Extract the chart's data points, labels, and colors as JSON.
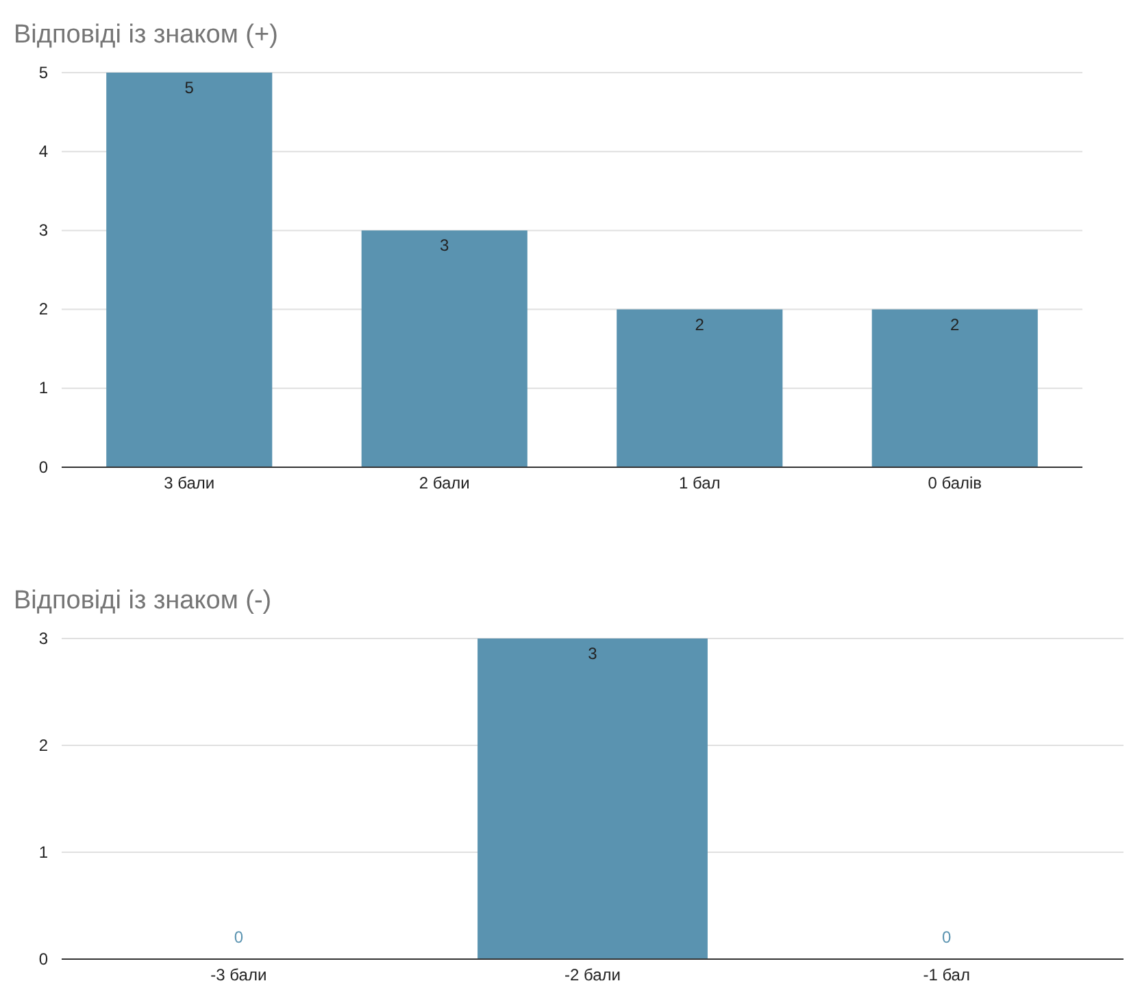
{
  "chart_data": [
    {
      "type": "bar",
      "title": "Відповіді із знаком (+)",
      "categories": [
        "3 бали",
        "2 бали",
        "1 бал",
        "0 балів"
      ],
      "values": [
        5,
        3,
        2,
        2
      ],
      "color": "#5a93b0",
      "ylim": [
        0,
        5
      ],
      "yticks": [
        0,
        1,
        2,
        3,
        4,
        5
      ],
      "grid": "y",
      "data_labels": true
    },
    {
      "type": "bar",
      "title": "Відповіді із знаком (-)",
      "categories": [
        "-3 бали",
        "-2 бали",
        "-1 бал"
      ],
      "values": [
        0,
        3,
        0
      ],
      "color": "#5a93b0",
      "ylim": [
        0,
        3
      ],
      "yticks": [
        0,
        1,
        2,
        3
      ],
      "grid": "y",
      "data_labels": true
    }
  ]
}
